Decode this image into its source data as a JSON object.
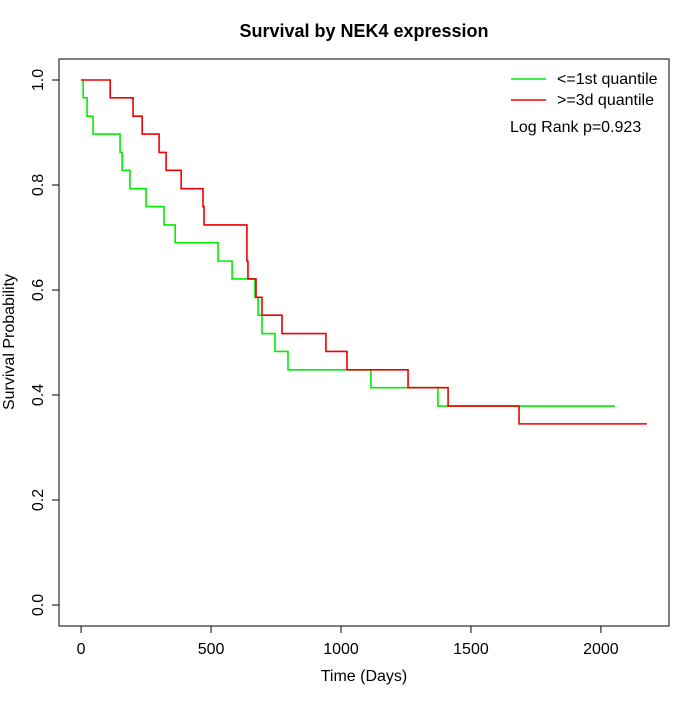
{
  "chart_data": {
    "type": "step",
    "title": "Survival by NEK4 expression",
    "xlabel": "Time (Days)",
    "ylabel": "Survival Probability",
    "annotation": "Log Rank p=0.923",
    "xlim": [
      -85,
      2262
    ],
    "ylim": [
      -0.04,
      1.04
    ],
    "xticks": [
      0,
      500,
      1000,
      1500,
      2000
    ],
    "yticks": [
      {
        "value": 0,
        "label": "0.0"
      },
      0.2,
      0.4,
      0.6,
      0.8,
      {
        "value": 1,
        "label": "1.0"
      }
    ],
    "legend": "top-right",
    "series": [
      {
        "name": "<=1st quantile",
        "color": "#00ee00",
        "x": [
          0,
          8,
          23,
          46,
          150,
          158,
          188,
          250,
          319,
          362,
          527,
          581,
          669,
          681,
          696,
          746,
          796,
          1115,
          1373,
          2054
        ],
        "values": [
          1.0,
          0.966,
          0.931,
          0.897,
          0.862,
          0.828,
          0.793,
          0.759,
          0.724,
          0.69,
          0.655,
          0.621,
          0.586,
          0.552,
          0.517,
          0.483,
          0.448,
          0.414,
          0.379,
          0.379
        ]
      },
      {
        "name": ">=3d quantile",
        "color": "#ee0000",
        "x": [
          0,
          112,
          200,
          235,
          300,
          327,
          385,
          469,
          473,
          638,
          642,
          673,
          696,
          773,
          942,
          1023,
          1258,
          1412,
          1685,
          2177
        ],
        "values": [
          1.0,
          0.966,
          0.931,
          0.897,
          0.862,
          0.828,
          0.793,
          0.759,
          0.724,
          0.655,
          0.621,
          0.586,
          0.552,
          0.517,
          0.483,
          0.448,
          0.414,
          0.379,
          0.345,
          0.345
        ]
      }
    ]
  }
}
